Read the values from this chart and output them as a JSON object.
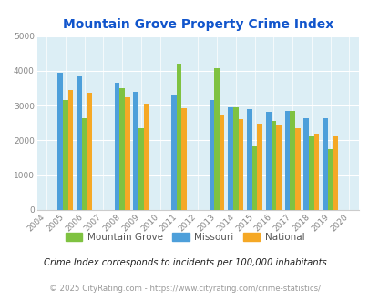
{
  "title": "Mountain Grove Property Crime Index",
  "all_years": [
    2004,
    2005,
    2006,
    2007,
    2008,
    2009,
    2010,
    2011,
    2012,
    2013,
    2014,
    2015,
    2016,
    2017,
    2018,
    2019,
    2020
  ],
  "data_years": [
    2005,
    2006,
    2008,
    2009,
    2011,
    2013,
    2014,
    2015,
    2016,
    2017,
    2018,
    2019
  ],
  "mountain_grove": [
    3150,
    2650,
    3500,
    2350,
    4200,
    4080,
    2950,
    1830,
    2550,
    2840,
    2120,
    1750
  ],
  "missouri": [
    3950,
    3840,
    3660,
    3390,
    3330,
    3150,
    2940,
    2890,
    2820,
    2840,
    2630,
    2630
  ],
  "national": [
    3460,
    3360,
    3230,
    3050,
    2930,
    2720,
    2600,
    2490,
    2450,
    2360,
    2190,
    2120
  ],
  "mountain_grove_color": "#7fc241",
  "missouri_color": "#4d9fda",
  "national_color": "#f5a825",
  "bg_color": "#dceef5",
  "ylim": [
    0,
    5000
  ],
  "yticks": [
    0,
    1000,
    2000,
    3000,
    4000,
    5000
  ],
  "legend_labels": [
    "Mountain Grove",
    "Missouri",
    "National"
  ],
  "footnote1": "Crime Index corresponds to incidents per 100,000 inhabitants",
  "footnote2": "© 2025 CityRating.com - https://www.cityrating.com/crime-statistics/",
  "title_color": "#1155cc",
  "footnote1_color": "#222222",
  "footnote2_color": "#999999"
}
